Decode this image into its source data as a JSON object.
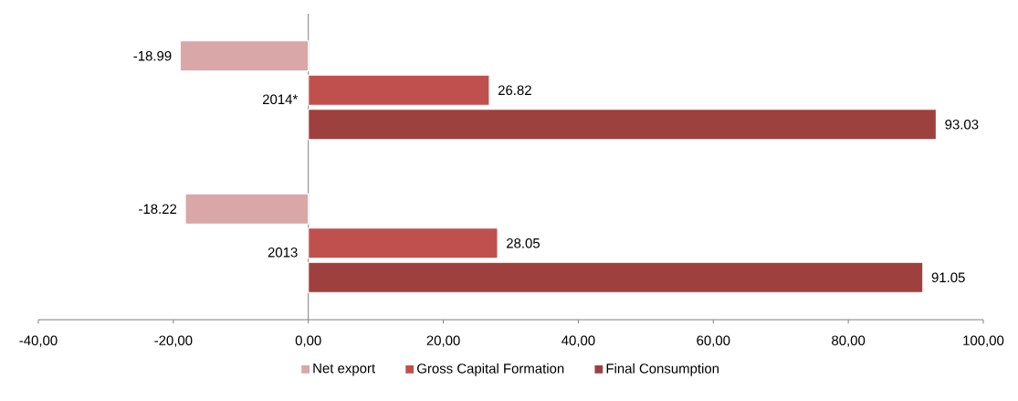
{
  "chart_data": {
    "type": "bar",
    "orientation": "horizontal",
    "categories": [
      "2014*",
      "2013"
    ],
    "series": [
      {
        "name": "Net export",
        "color": "#d9a7a7",
        "values": [
          -18.99,
          -18.22
        ]
      },
      {
        "name": "Gross  Capital Formation",
        "color": "#c0504d",
        "values": [
          26.82,
          28.05
        ]
      },
      {
        "name": "Final Consumption",
        "color": "#9e403e",
        "values": [
          93.03,
          91.05
        ]
      }
    ],
    "xlim": [
      -40,
      100
    ],
    "xticks": [
      {
        "value": -40,
        "label": "-40,00"
      },
      {
        "value": -20,
        "label": "-20,00"
      },
      {
        "value": 0,
        "label": "0,00"
      },
      {
        "value": 20,
        "label": "20,00"
      },
      {
        "value": 40,
        "label": "40,00"
      },
      {
        "value": 60,
        "label": "60,00"
      },
      {
        "value": 80,
        "label": "80,00"
      },
      {
        "value": 100,
        "label": "100,00"
      }
    ],
    "data_labels": true,
    "legend": "bottom",
    "grid": false
  }
}
